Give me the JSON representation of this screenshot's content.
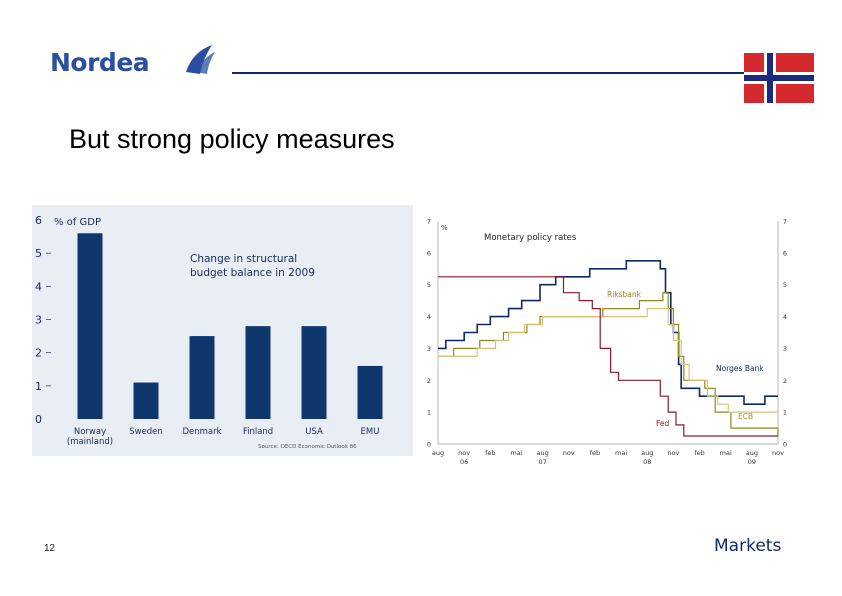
{
  "header": {
    "logo_text": "Nordea",
    "flag": {
      "colors": {
        "red": "#d42a2e",
        "white": "#ffffff",
        "blue": "#1b2a7a"
      }
    }
  },
  "slide": {
    "title": "But strong policy measures",
    "page_number": "12"
  },
  "footer": {
    "brand": "Markets"
  },
  "colors": {
    "navy": "#0e2a66",
    "bar": "#10366e",
    "panel": "#e9eef5"
  },
  "chart_data": [
    {
      "type": "bar",
      "title": "Change in structural budget balance in 2009",
      "ylabel": "% of GDP",
      "categories": [
        "Norway (mainland)",
        "Sweden",
        "Denmark",
        "Finland",
        "USA",
        "EMU"
      ],
      "category_lines": [
        [
          "Norway",
          "(mainland)"
        ],
        [
          "Sweden"
        ],
        [
          "Denmark"
        ],
        [
          "Finland"
        ],
        [
          "USA"
        ],
        [
          "EMU"
        ]
      ],
      "values": [
        5.6,
        1.1,
        2.5,
        2.8,
        2.8,
        1.6
      ],
      "ylim": [
        0,
        6
      ],
      "yticks": [
        0,
        1,
        2,
        3,
        4,
        5,
        6
      ],
      "source": "Source: OECD Economic Outlook 86",
      "grid": false
    },
    {
      "type": "line",
      "title": "Monetary policy rates",
      "ylabel": "%",
      "ylim": [
        0,
        7
      ],
      "yticks": [
        0,
        1,
        2,
        3,
        4,
        5,
        6,
        7
      ],
      "x_ticks": [
        "aug",
        "nov",
        "feb",
        "mai",
        "aug",
        "nov",
        "feb",
        "mai",
        "aug",
        "nov",
        "feb",
        "mai",
        "aug",
        "nov"
      ],
      "x_years": [
        {
          "label": "06",
          "at_tick": 1
        },
        {
          "label": "07",
          "at_tick": 4
        },
        {
          "label": "08",
          "at_tick": 8
        },
        {
          "label": "09",
          "at_tick": 12
        }
      ],
      "grid": false,
      "series": [
        {
          "name": "Norges Bank",
          "color": "#0e2a66",
          "points": [
            [
              0,
              3
            ],
            [
              0.3,
              3.25
            ],
            [
              1,
              3.5
            ],
            [
              1.5,
              3.75
            ],
            [
              2,
              4
            ],
            [
              2.7,
              4.25
            ],
            [
              3.2,
              4.5
            ],
            [
              3.9,
              5
            ],
            [
              4.5,
              5.25
            ],
            [
              5.8,
              5.5
            ],
            [
              7.2,
              5.75
            ],
            [
              8.5,
              5.5
            ],
            [
              8.7,
              4.75
            ],
            [
              8.9,
              3.75
            ],
            [
              9,
              3.5
            ],
            [
              9.2,
              2.5
            ],
            [
              9.3,
              1.75
            ],
            [
              10,
              1.5
            ],
            [
              11.7,
              1.25
            ],
            [
              12.4,
              1.25
            ],
            [
              12.5,
              1.5
            ],
            [
              13,
              1.5
            ]
          ]
        },
        {
          "name": "Riksbank",
          "color": "#8a8a1e",
          "points": [
            [
              0,
              2.75
            ],
            [
              0.6,
              3
            ],
            [
              1.6,
              3.25
            ],
            [
              2.5,
              3.5
            ],
            [
              3.4,
              3.75
            ],
            [
              3.9,
              4
            ],
            [
              6.3,
              4.25
            ],
            [
              7.7,
              4.5
            ],
            [
              8.6,
              4.75
            ],
            [
              8.8,
              4.25
            ],
            [
              9,
              3.75
            ],
            [
              9.2,
              2.75
            ],
            [
              9.4,
              2
            ],
            [
              10.2,
              1.75
            ],
            [
              10.6,
              1
            ],
            [
              11.2,
              0.5
            ],
            [
              13,
              0.25
            ]
          ]
        },
        {
          "name": "ECB",
          "color": "#d8c27a",
          "points": [
            [
              0,
              2.75
            ],
            [
              0.5,
              2.75
            ],
            [
              1.5,
              3
            ],
            [
              2.2,
              3.25
            ],
            [
              2.7,
              3.5
            ],
            [
              3.3,
              3.75
            ],
            [
              4,
              4
            ],
            [
              5,
              4
            ],
            [
              7,
              4
            ],
            [
              8,
              4.25
            ],
            [
              8.8,
              3.75
            ],
            [
              9,
              3.25
            ],
            [
              9.3,
              2.5
            ],
            [
              9.6,
              2
            ],
            [
              10.3,
              1.5
            ],
            [
              10.7,
              1.25
            ],
            [
              11.1,
              1
            ],
            [
              13,
              1
            ]
          ]
        },
        {
          "name": "Fed",
          "color": "#8c1a2e",
          "points": [
            [
              0,
              5.25
            ],
            [
              4.3,
              5.25
            ],
            [
              4.8,
              4.75
            ],
            [
              5.4,
              4.5
            ],
            [
              5.9,
              4.25
            ],
            [
              6.2,
              3
            ],
            [
              6.6,
              2.25
            ],
            [
              6.9,
              2
            ],
            [
              8,
              2
            ],
            [
              8.5,
              1.5
            ],
            [
              8.8,
              1
            ],
            [
              9.1,
              0.6
            ],
            [
              9.4,
              0.25
            ],
            [
              13,
              0.25
            ]
          ]
        }
      ]
    }
  ]
}
